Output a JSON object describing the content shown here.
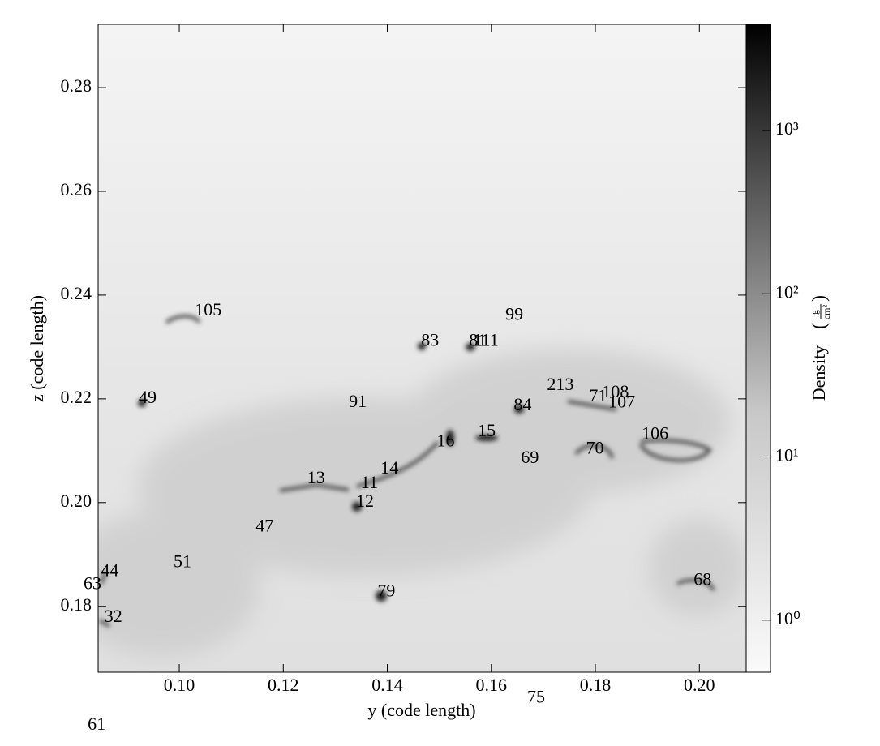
{
  "chart_data": {
    "type": "image",
    "xlabel": "y  (code length)",
    "ylabel": "z  (code length)",
    "xlim": [
      0.0844,
      0.209
    ],
    "ylim": [
      0.1673,
      0.2922
    ],
    "xticks": [
      {
        "value": 0.1,
        "label": "0.10"
      },
      0.12,
      0.14,
      0.16,
      0.18,
      {
        "value": 0.2,
        "label": "0.20"
      }
    ],
    "yticks": [
      0.18,
      {
        "value": 0.2,
        "label": "0.20"
      },
      0.22,
      0.24,
      0.26,
      0.28
    ],
    "colorbar": {
      "label": "Density",
      "units_numerator": "g",
      "units_denominator": "cm²",
      "log": true,
      "lim": [
        0.48,
        4470
      ],
      "ticks": [
        {
          "value": 1,
          "label": "10⁰"
        },
        {
          "value": 10,
          "label": "10¹"
        },
        {
          "value": 100,
          "label": "10²"
        },
        {
          "value": 1000,
          "label": "10³"
        }
      ]
    },
    "annotations": [
      {
        "text": "105",
        "x": 0.103,
        "y": 0.2369
      },
      {
        "text": "99",
        "x": 0.1627,
        "y": 0.236
      },
      {
        "text": "83",
        "x": 0.1465,
        "y": 0.231
      },
      {
        "text": "81",
        "x": 0.1557,
        "y": 0.231
      },
      {
        "text": "111",
        "x": 0.1565,
        "y": 0.231
      },
      {
        "text": "49",
        "x": 0.0922,
        "y": 0.22
      },
      {
        "text": "91",
        "x": 0.1326,
        "y": 0.2192
      },
      {
        "text": "213",
        "x": 0.1707,
        "y": 0.2225
      },
      {
        "text": "108",
        "x": 0.1813,
        "y": 0.2211
      },
      {
        "text": "71",
        "x": 0.1788,
        "y": 0.2203
      },
      {
        "text": "107",
        "x": 0.1825,
        "y": 0.2191
      },
      {
        "text": "84",
        "x": 0.1643,
        "y": 0.2186
      },
      {
        "text": "16",
        "x": 0.1495,
        "y": 0.2116
      },
      {
        "text": "15",
        "x": 0.1574,
        "y": 0.2136
      },
      {
        "text": "106",
        "x": 0.1889,
        "y": 0.213
      },
      {
        "text": "70",
        "x": 0.1782,
        "y": 0.2102
      },
      {
        "text": "69",
        "x": 0.1657,
        "y": 0.2084
      },
      {
        "text": "14",
        "x": 0.1387,
        "y": 0.2064
      },
      {
        "text": "13",
        "x": 0.1246,
        "y": 0.2045
      },
      {
        "text": "11",
        "x": 0.1349,
        "y": 0.2036
      },
      {
        "text": "12",
        "x": 0.134,
        "y": 0.2
      },
      {
        "text": "47",
        "x": 0.1147,
        "y": 0.1952
      },
      {
        "text": "51",
        "x": 0.0989,
        "y": 0.1883
      },
      {
        "text": "44",
        "x": 0.0849,
        "y": 0.1866
      },
      {
        "text": "63",
        "x": 0.0816,
        "y": 0.1841
      },
      {
        "text": "68",
        "x": 0.1989,
        "y": 0.1849
      },
      {
        "text": "79",
        "x": 0.1381,
        "y": 0.1827
      },
      {
        "text": "32",
        "x": 0.0856,
        "y": 0.1778
      },
      {
        "text": "61",
        "x": 0.0824,
        "y": 0.157
      },
      {
        "text": "75",
        "x": 0.1669,
        "y": 0.1622
      }
    ]
  }
}
